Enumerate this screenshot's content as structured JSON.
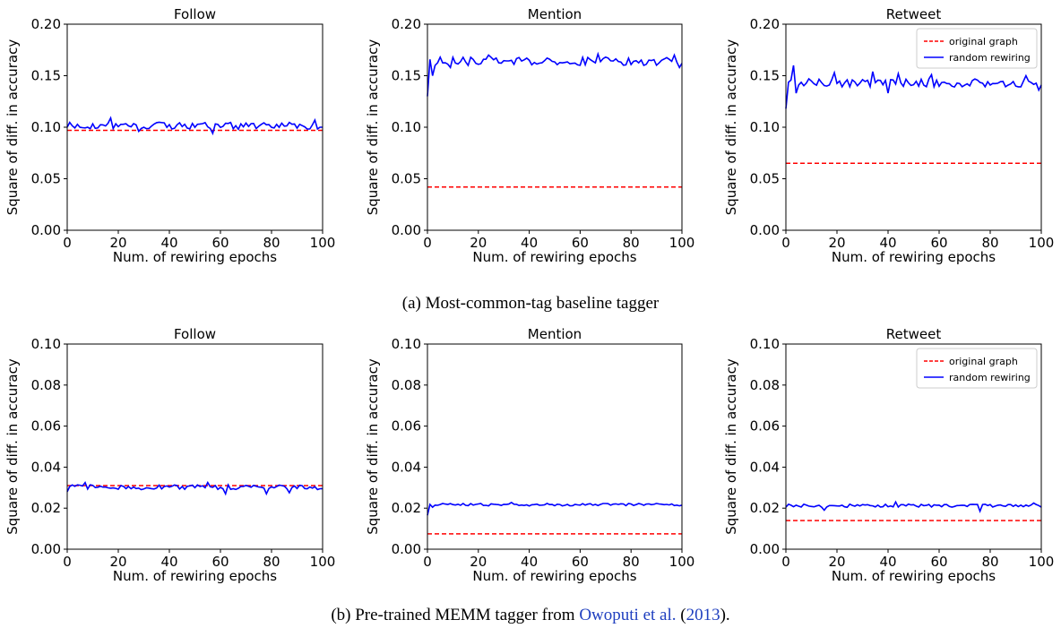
{
  "captions": {
    "a": "(a) Most-common-tag baseline tagger",
    "b_prefix": "(b) Pre-trained MEMM tagger from ",
    "b_link_author": "Owoputi et al.",
    "b_mid": " (",
    "b_link_year": "2013",
    "b_suffix": ")."
  },
  "colors": {
    "original": "#ff0000",
    "random": "#0000ff"
  },
  "chart_data": [
    {
      "type": "line",
      "title": "Follow",
      "xlabel": "Num. of rewiring epochs",
      "ylabel": "Square of diff. in accuracy",
      "xlim": [
        0,
        100
      ],
      "ylim": [
        0,
        0.2
      ],
      "xticks": [
        "0",
        "20",
        "40",
        "60",
        "80",
        "100"
      ],
      "yticks": [
        "0.00",
        "0.05",
        "0.10",
        "0.15",
        "0.20"
      ],
      "legend": null,
      "series": [
        {
          "name": "original graph",
          "style": "dashed",
          "values": [
            0.097
          ]
        },
        {
          "name": "random rewiring",
          "style": "solid",
          "base": 0.1015,
          "amp": 0.0035,
          "first": 0.1,
          "spikes": [
            [
              17,
              0.109
            ],
            [
              28,
              0.096
            ],
            [
              57,
              0.094
            ],
            [
              97,
              0.107
            ],
            [
              100,
              0.1
            ]
          ]
        }
      ]
    },
    {
      "type": "line",
      "title": "Mention",
      "xlabel": "Num. of rewiring epochs",
      "ylabel": "Square of diff. in accuracy",
      "xlim": [
        0,
        100
      ],
      "ylim": [
        0,
        0.2
      ],
      "xticks": [
        "0",
        "20",
        "40",
        "60",
        "80",
        "100"
      ],
      "yticks": [
        "0.00",
        "0.05",
        "0.10",
        "0.15",
        "0.20"
      ],
      "legend": null,
      "series": [
        {
          "name": "original graph",
          "style": "dashed",
          "values": [
            0.042
          ]
        },
        {
          "name": "random rewiring",
          "style": "solid",
          "base": 0.164,
          "amp": 0.004,
          "first": 0.13,
          "spikes": [
            [
              2,
              0.15
            ],
            [
              3,
              0.16
            ],
            [
              5,
              0.168
            ],
            [
              9,
              0.158
            ],
            [
              24,
              0.17
            ],
            [
              67,
              0.171
            ],
            [
              97,
              0.17
            ],
            [
              99,
              0.158
            ],
            [
              100,
              0.162
            ]
          ]
        }
      ]
    },
    {
      "type": "line",
      "title": "Retweet",
      "xlabel": "Num. of rewiring epochs",
      "ylabel": "Square of diff. in accuracy",
      "xlim": [
        0,
        100
      ],
      "ylim": [
        0,
        0.2
      ],
      "xticks": [
        "0",
        "20",
        "40",
        "60",
        "80",
        "100"
      ],
      "yticks": [
        "0.00",
        "0.05",
        "0.10",
        "0.15",
        "0.20"
      ],
      "legend": {
        "position": "top-right",
        "entries": [
          "original graph",
          "random rewiring"
        ]
      },
      "series": [
        {
          "name": "original graph",
          "style": "dashed",
          "values": [
            0.065
          ]
        },
        {
          "name": "random rewiring",
          "style": "solid",
          "base": 0.143,
          "amp": 0.004,
          "first": 0.118,
          "spikes": [
            [
              3,
              0.16
            ],
            [
              4,
              0.133
            ],
            [
              19,
              0.153
            ],
            [
              34,
              0.154
            ],
            [
              40,
              0.133
            ],
            [
              44,
              0.152
            ],
            [
              57,
              0.151
            ],
            [
              94,
              0.15
            ],
            [
              99,
              0.136
            ],
            [
              100,
              0.141
            ]
          ]
        }
      ]
    },
    {
      "type": "line",
      "title": "Follow",
      "xlabel": "Num. of rewiring epochs",
      "ylabel": "Square of diff. in accuracy",
      "xlim": [
        0,
        100
      ],
      "ylim": [
        0,
        0.1
      ],
      "xticks": [
        "0",
        "20",
        "40",
        "60",
        "80",
        "100"
      ],
      "yticks": [
        "0.00",
        "0.02",
        "0.04",
        "0.06",
        "0.08",
        "0.10"
      ],
      "legend": null,
      "series": [
        {
          "name": "original graph",
          "style": "dashed",
          "values": [
            0.031
          ]
        },
        {
          "name": "random rewiring",
          "style": "solid",
          "base": 0.0302,
          "amp": 0.0012,
          "first": 0.028,
          "spikes": [
            [
              7,
              0.0325
            ],
            [
              55,
              0.0325
            ],
            [
              62,
              0.027
            ],
            [
              78,
              0.027
            ],
            [
              87,
              0.0275
            ],
            [
              100,
              0.0295
            ]
          ]
        }
      ]
    },
    {
      "type": "line",
      "title": "Mention",
      "xlabel": "Num. of rewiring epochs",
      "ylabel": "Square of diff. in accuracy",
      "xlim": [
        0,
        100
      ],
      "ylim": [
        0,
        0.1
      ],
      "xticks": [
        "0",
        "20",
        "40",
        "60",
        "80",
        "100"
      ],
      "yticks": [
        "0.00",
        "0.02",
        "0.04",
        "0.06",
        "0.08",
        "0.10"
      ],
      "legend": null,
      "series": [
        {
          "name": "original graph",
          "style": "dashed",
          "values": [
            0.0075
          ]
        },
        {
          "name": "random rewiring",
          "style": "solid",
          "base": 0.0217,
          "amp": 0.0006,
          "first": 0.0165,
          "spikes": [
            [
              2,
              0.0205
            ],
            [
              3,
              0.0215
            ],
            [
              33,
              0.0228
            ],
            [
              100,
              0.0215
            ]
          ]
        }
      ]
    },
    {
      "type": "line",
      "title": "Retweet",
      "xlabel": "Num. of rewiring epochs",
      "ylabel": "Square of diff. in accuracy",
      "xlim": [
        0,
        100
      ],
      "ylim": [
        0,
        0.1
      ],
      "xticks": [
        "0",
        "20",
        "40",
        "60",
        "80",
        "100"
      ],
      "yticks": [
        "0.00",
        "0.02",
        "0.04",
        "0.06",
        "0.08",
        "0.10"
      ],
      "legend": {
        "position": "top-right",
        "entries": [
          "original graph",
          "random rewiring"
        ]
      },
      "series": [
        {
          "name": "original graph",
          "style": "dashed",
          "values": [
            0.014
          ]
        },
        {
          "name": "random rewiring",
          "style": "solid",
          "base": 0.0212,
          "amp": 0.0008,
          "first": 0.0205,
          "spikes": [
            [
              15,
              0.019
            ],
            [
              43,
              0.023
            ],
            [
              76,
              0.0185
            ],
            [
              97,
              0.0225
            ],
            [
              100,
              0.0205
            ]
          ]
        }
      ]
    }
  ]
}
